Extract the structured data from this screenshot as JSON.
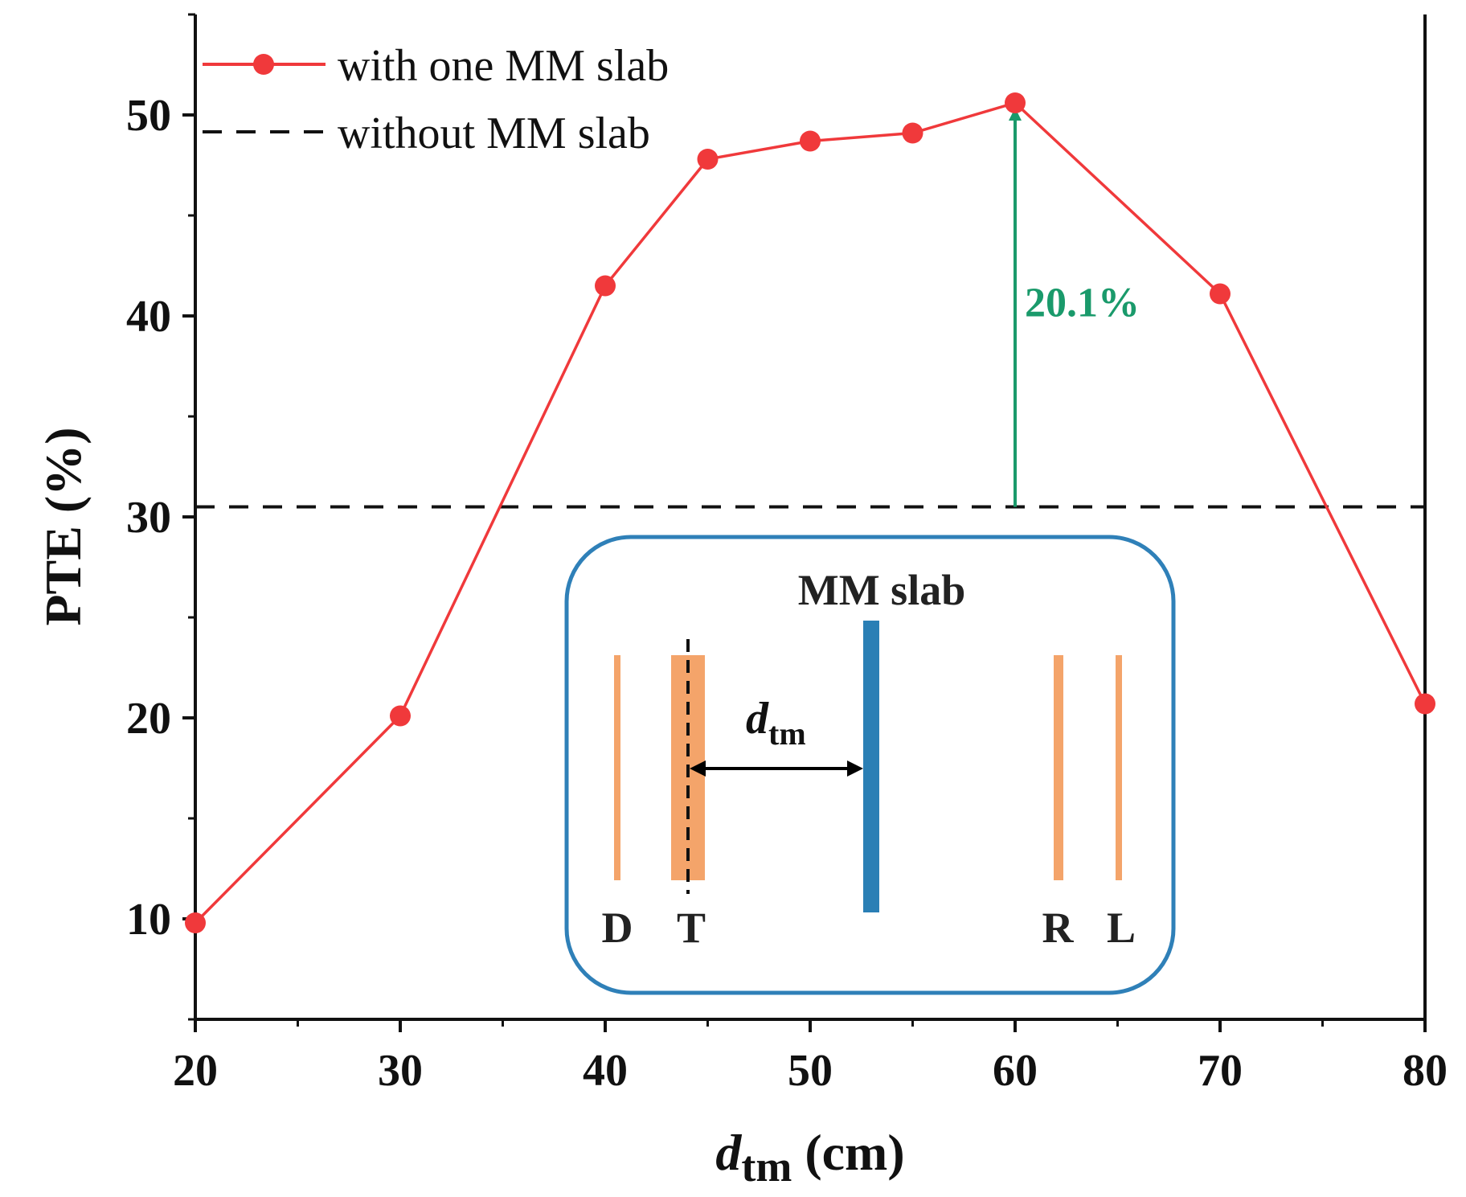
{
  "chart_data": {
    "type": "line",
    "x": [
      20,
      30,
      40,
      45,
      50,
      55,
      60,
      70,
      80
    ],
    "series": [
      {
        "name": "with one MM slab",
        "values": [
          9.8,
          20.1,
          41.5,
          47.8,
          48.7,
          49.1,
          50.6,
          41.1,
          20.7
        ],
        "color": "#f0393b",
        "marker": "circle",
        "style": "solid"
      },
      {
        "name": "without MM slab",
        "constant": 30.5,
        "color": "#111111",
        "style": "dashed"
      }
    ],
    "xlabel": {
      "main": "d",
      "sub": "tm",
      "unit": " (cm)"
    },
    "ylabel": "PTE (%)",
    "xlim": [
      20,
      80
    ],
    "ylim": [
      5,
      55
    ],
    "xticks": [
      20,
      30,
      40,
      50,
      60,
      70,
      80
    ],
    "yticks": [
      10,
      20,
      30,
      40,
      50
    ],
    "legend_position": "top-left",
    "annotation": {
      "text": "20.1%",
      "x": 60,
      "from": 30.5,
      "to": 50.6,
      "color": "#1a9a6b"
    },
    "inset": {
      "title": "MM slab",
      "labels": [
        "D",
        "T",
        "R",
        "L"
      ],
      "distance_label": {
        "main": "d",
        "sub": "tm"
      },
      "border_color": "#2f80b8",
      "coil_color": "#f4a46a",
      "slab_color": "#2a7fb5"
    }
  }
}
